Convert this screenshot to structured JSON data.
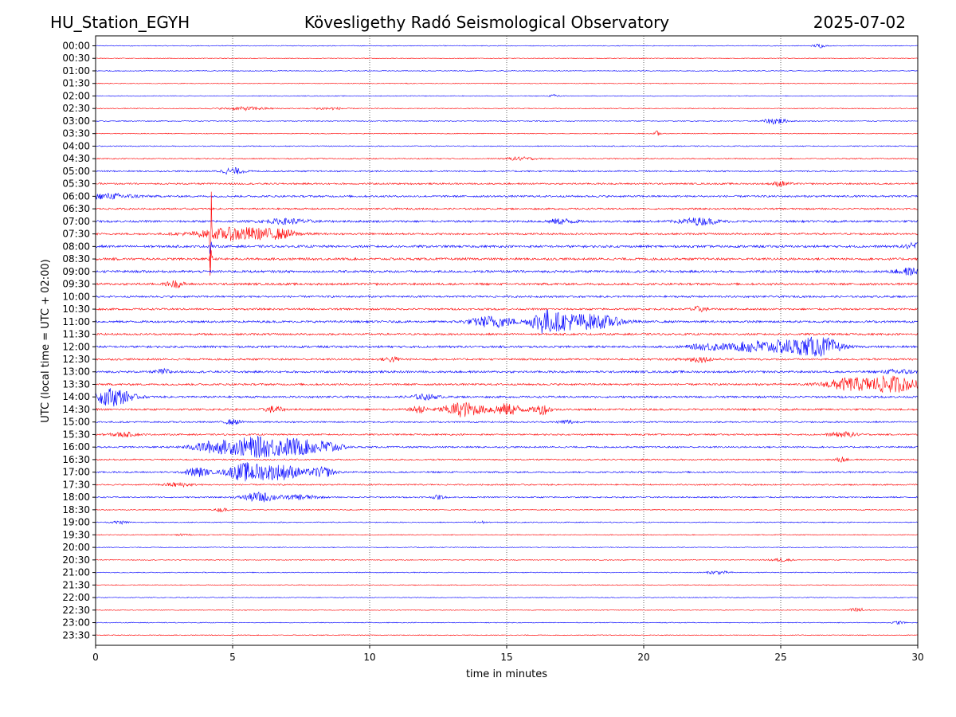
{
  "header": {
    "station": "HU_Station_EGYH",
    "observatory": "Kövesligethy Radó Seismological Observatory",
    "date": "2025-07-02"
  },
  "chart_data": {
    "type": "line",
    "xlabel": "time in minutes",
    "ylabel": "UTC (local time = UTC + 02:00)",
    "xlim": [
      0,
      30
    ],
    "xticks": [
      0,
      5,
      10,
      15,
      20,
      25,
      30
    ],
    "grid": "vertical dotted",
    "colors": [
      "#0000ff",
      "#ff0000"
    ],
    "rows": [
      {
        "label": "00:00",
        "noise": 0.8,
        "events": [
          {
            "t": 26.4,
            "amp": 2.5,
            "dur": 0.2
          }
        ]
      },
      {
        "label": "00:30",
        "noise": 0.8,
        "events": []
      },
      {
        "label": "01:00",
        "noise": 0.8,
        "events": []
      },
      {
        "label": "01:30",
        "noise": 0.8,
        "events": []
      },
      {
        "label": "02:00",
        "noise": 0.8,
        "events": [
          {
            "t": 16.8,
            "amp": 2,
            "dur": 0.2
          }
        ]
      },
      {
        "label": "02:30",
        "noise": 0.9,
        "events": [
          {
            "t": 5.5,
            "amp": 2,
            "dur": 0.8
          },
          {
            "t": 8.5,
            "amp": 1.5,
            "dur": 0.6
          }
        ]
      },
      {
        "label": "03:00",
        "noise": 0.9,
        "events": [
          {
            "t": 24.8,
            "amp": 4,
            "dur": 0.4
          }
        ]
      },
      {
        "label": "03:30",
        "noise": 0.8,
        "events": [
          {
            "t": 20.5,
            "amp": 3.5,
            "dur": 0.1
          }
        ]
      },
      {
        "label": "04:00",
        "noise": 1.0,
        "events": []
      },
      {
        "label": "04:30",
        "noise": 1.1,
        "events": [
          {
            "t": 15.5,
            "amp": 2,
            "dur": 0.5
          }
        ]
      },
      {
        "label": "05:00",
        "noise": 1.5,
        "events": [
          {
            "t": 5.0,
            "amp": 4,
            "dur": 0.4
          }
        ]
      },
      {
        "label": "05:30",
        "noise": 1.7,
        "events": [
          {
            "t": 25.0,
            "amp": 3,
            "dur": 0.3
          }
        ]
      },
      {
        "label": "06:00",
        "noise": 2.0,
        "events": [
          {
            "t": 0.5,
            "amp": 3,
            "dur": 1.0
          }
        ]
      },
      {
        "label": "06:30",
        "noise": 1.8,
        "events": []
      },
      {
        "label": "07:00",
        "noise": 2.2,
        "events": [
          {
            "t": 7.0,
            "amp": 3,
            "dur": 0.8
          },
          {
            "t": 17.0,
            "amp": 3,
            "dur": 0.5
          },
          {
            "t": 22.0,
            "amp": 4,
            "dur": 0.7
          }
        ]
      },
      {
        "label": "07:30",
        "noise": 2.0,
        "events": [
          {
            "t": 4.2,
            "amp": 100,
            "dur": 0.03
          },
          {
            "t": 5.3,
            "amp": 8,
            "dur": 1.5
          },
          {
            "t": 6.8,
            "amp": 3,
            "dur": 0.5
          }
        ]
      },
      {
        "label": "08:00",
        "noise": 2.4,
        "events": [
          {
            "t": 4.2,
            "amp": 12,
            "dur": 0.05
          },
          {
            "t": 30.0,
            "amp": 5,
            "dur": 0.4
          }
        ]
      },
      {
        "label": "08:30",
        "noise": 2.4,
        "events": [
          {
            "t": 4.2,
            "amp": 12,
            "dur": 0.05
          }
        ]
      },
      {
        "label": "09:00",
        "noise": 2.4,
        "events": [
          {
            "t": 29.7,
            "amp": 4,
            "dur": 0.5
          }
        ]
      },
      {
        "label": "09:30",
        "noise": 2.3,
        "events": [
          {
            "t": 2.9,
            "amp": 4,
            "dur": 0.3
          }
        ]
      },
      {
        "label": "10:00",
        "noise": 2.0,
        "events": []
      },
      {
        "label": "10:30",
        "noise": 2.0,
        "events": [
          {
            "t": 22.0,
            "amp": 3,
            "dur": 0.3
          }
        ]
      },
      {
        "label": "11:00",
        "noise": 2.2,
        "events": [
          {
            "t": 14.5,
            "amp": 7,
            "dur": 0.8
          },
          {
            "t": 16.3,
            "amp": 11,
            "dur": 0.4
          },
          {
            "t": 17.0,
            "amp": 9,
            "dur": 0.8
          },
          {
            "t": 18.3,
            "amp": 8,
            "dur": 0.9
          }
        ]
      },
      {
        "label": "11:30",
        "noise": 2.0,
        "events": []
      },
      {
        "label": "12:00",
        "noise": 2.2,
        "events": [
          {
            "t": 22.5,
            "amp": 4,
            "dur": 0.8
          },
          {
            "t": 24.0,
            "amp": 7,
            "dur": 0.6
          },
          {
            "t": 25.2,
            "amp": 8,
            "dur": 0.7
          },
          {
            "t": 26.2,
            "amp": 9,
            "dur": 0.6
          },
          {
            "t": 26.8,
            "amp": 6,
            "dur": 0.5
          }
        ]
      },
      {
        "label": "12:30",
        "noise": 2.0,
        "events": [
          {
            "t": 10.8,
            "amp": 3,
            "dur": 0.3
          },
          {
            "t": 22.0,
            "amp": 3,
            "dur": 0.5
          }
        ]
      },
      {
        "label": "13:00",
        "noise": 2.2,
        "events": [
          {
            "t": 2.5,
            "amp": 3,
            "dur": 0.3
          },
          {
            "t": 29.3,
            "amp": 3,
            "dur": 0.5
          }
        ]
      },
      {
        "label": "13:30",
        "noise": 2.0,
        "events": [
          {
            "t": 27.4,
            "amp": 7,
            "dur": 0.8
          },
          {
            "t": 29.0,
            "amp": 10,
            "dur": 1.0
          }
        ]
      },
      {
        "label": "14:00",
        "noise": 2.0,
        "events": [
          {
            "t": 0.6,
            "amp": 11,
            "dur": 0.7
          },
          {
            "t": 12.0,
            "amp": 3,
            "dur": 0.5
          }
        ]
      },
      {
        "label": "14:30",
        "noise": 2.0,
        "events": [
          {
            "t": 6.5,
            "amp": 4,
            "dur": 0.3
          },
          {
            "t": 11.8,
            "amp": 4,
            "dur": 0.3
          },
          {
            "t": 13.4,
            "amp": 9,
            "dur": 0.7
          },
          {
            "t": 15.0,
            "amp": 7,
            "dur": 0.6
          },
          {
            "t": 16.3,
            "amp": 6,
            "dur": 0.3
          }
        ]
      },
      {
        "label": "15:00",
        "noise": 1.6,
        "events": [
          {
            "t": 5.0,
            "amp": 3,
            "dur": 0.3
          },
          {
            "t": 17.2,
            "amp": 2.5,
            "dur": 0.3
          }
        ]
      },
      {
        "label": "15:30",
        "noise": 1.6,
        "events": [
          {
            "t": 1.0,
            "amp": 2.5,
            "dur": 0.5
          },
          {
            "t": 27.3,
            "amp": 3,
            "dur": 0.5
          }
        ]
      },
      {
        "label": "16:00",
        "noise": 1.7,
        "events": [
          {
            "t": 4.3,
            "amp": 7,
            "dur": 0.8
          },
          {
            "t": 5.8,
            "amp": 12,
            "dur": 0.9
          },
          {
            "t": 7.3,
            "amp": 10,
            "dur": 0.9
          },
          {
            "t": 8.5,
            "amp": 6,
            "dur": 0.5
          }
        ]
      },
      {
        "label": "16:30",
        "noise": 1.5,
        "events": [
          {
            "t": 27.2,
            "amp": 3,
            "dur": 0.2
          }
        ]
      },
      {
        "label": "17:00",
        "noise": 1.7,
        "events": [
          {
            "t": 3.7,
            "amp": 6,
            "dur": 0.4
          },
          {
            "t": 5.5,
            "amp": 11,
            "dur": 0.7
          },
          {
            "t": 6.8,
            "amp": 9,
            "dur": 0.8
          },
          {
            "t": 8.3,
            "amp": 6,
            "dur": 0.4
          }
        ]
      },
      {
        "label": "17:30",
        "noise": 1.4,
        "events": [
          {
            "t": 3.0,
            "amp": 2.5,
            "dur": 0.5
          }
        ]
      },
      {
        "label": "18:00",
        "noise": 1.4,
        "events": [
          {
            "t": 6.0,
            "amp": 6,
            "dur": 0.6
          },
          {
            "t": 7.5,
            "amp": 3,
            "dur": 0.6
          },
          {
            "t": 12.5,
            "amp": 2.5,
            "dur": 0.2
          }
        ]
      },
      {
        "label": "18:30",
        "noise": 1.0,
        "events": [
          {
            "t": 4.6,
            "amp": 2.5,
            "dur": 0.2
          }
        ]
      },
      {
        "label": "19:00",
        "noise": 1.0,
        "events": [
          {
            "t": 0.9,
            "amp": 2,
            "dur": 0.3
          },
          {
            "t": 14.0,
            "amp": 2,
            "dur": 0.2
          }
        ]
      },
      {
        "label": "19:30",
        "noise": 0.9,
        "events": [
          {
            "t": 3.2,
            "amp": 2,
            "dur": 0.2
          }
        ]
      },
      {
        "label": "20:00",
        "noise": 0.9,
        "events": []
      },
      {
        "label": "20:30",
        "noise": 0.9,
        "events": [
          {
            "t": 25.0,
            "amp": 2,
            "dur": 0.4
          }
        ]
      },
      {
        "label": "21:00",
        "noise": 0.9,
        "events": [
          {
            "t": 22.7,
            "amp": 2,
            "dur": 0.4
          }
        ]
      },
      {
        "label": "21:30",
        "noise": 0.8,
        "events": []
      },
      {
        "label": "22:00",
        "noise": 0.8,
        "events": []
      },
      {
        "label": "22:30",
        "noise": 0.8,
        "events": [
          {
            "t": 27.8,
            "amp": 3,
            "dur": 0.3
          }
        ]
      },
      {
        "label": "23:00",
        "noise": 0.8,
        "events": [
          {
            "t": 29.3,
            "amp": 2,
            "dur": 0.2
          }
        ]
      },
      {
        "label": "23:30",
        "noise": 0.8,
        "events": []
      }
    ]
  }
}
